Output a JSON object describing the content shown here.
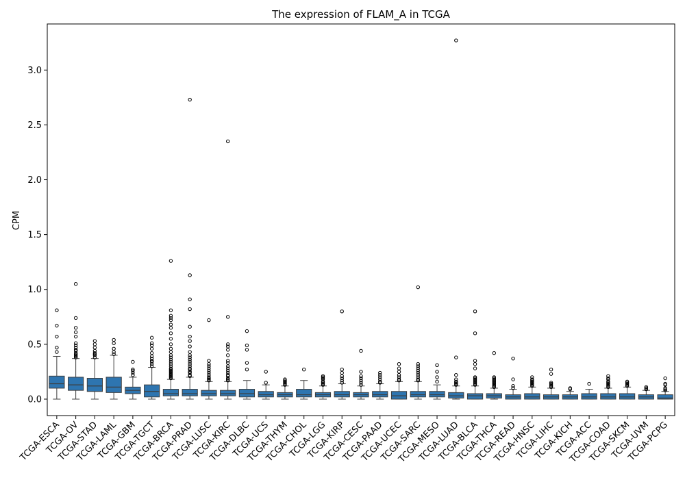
{
  "chart_data": {
    "type": "box",
    "title": "The expression of FLAM_A in TCGA",
    "xlabel": "",
    "ylabel": "CPM",
    "ylim": [
      -0.15,
      3.42
    ],
    "yticks": [
      0.0,
      0.5,
      1.0,
      1.5,
      2.0,
      2.5,
      3.0
    ],
    "ytick_labels": [
      "0.0",
      "0.5",
      "1.0",
      "1.5",
      "2.0",
      "2.5",
      "3.0"
    ],
    "grid": false,
    "box_color": "#2e75b0",
    "categories": [
      "TCGA-ESCA",
      "TCGA-OV",
      "TCGA-STAD",
      "TCGA-LAML",
      "TCGA-GBM",
      "TCGA-TGCT",
      "TCGA-BRCA",
      "TCGA-PRAD",
      "TCGA-LUSC",
      "TCGA-KIRC",
      "TCGA-DLBC",
      "TCGA-UCS",
      "TCGA-THYM",
      "TCGA-CHOL",
      "TCGA-LGG",
      "TCGA-KIRP",
      "TCGA-CESC",
      "TCGA-PAAD",
      "TCGA-UCEC",
      "TCGA-SARC",
      "TCGA-MESO",
      "TCGA-LUAD",
      "TCGA-BLCA",
      "TCGA-THCA",
      "TCGA-READ",
      "TCGA-HNSC",
      "TCGA-LIHC",
      "TCGA-KICH",
      "TCGA-ACC",
      "TCGA-COAD",
      "TCGA-SKCM",
      "TCGA-UVM",
      "TCGA-PCPG"
    ],
    "boxes": [
      {
        "whislo": 0.0,
        "q1": 0.1,
        "med": 0.14,
        "q3": 0.21,
        "whishi": 0.39,
        "fliers": [
          0.43,
          0.47,
          0.57,
          0.67,
          0.81
        ]
      },
      {
        "whislo": 0.0,
        "q1": 0.08,
        "med": 0.13,
        "q3": 0.2,
        "whishi": 0.37,
        "fliers": [
          0.38,
          0.39,
          0.4,
          0.41,
          0.42,
          0.44,
          0.45,
          0.47,
          0.49,
          0.51,
          0.57,
          0.61,
          0.65,
          0.74,
          1.05
        ]
      },
      {
        "whislo": 0.0,
        "q1": 0.07,
        "med": 0.12,
        "q3": 0.19,
        "whishi": 0.37,
        "fliers": [
          0.38,
          0.4,
          0.41,
          0.42,
          0.44,
          0.47,
          0.5,
          0.53
        ]
      },
      {
        "whislo": 0.0,
        "q1": 0.06,
        "med": 0.11,
        "q3": 0.2,
        "whishi": 0.4,
        "fliers": [
          0.41,
          0.43,
          0.46,
          0.51,
          0.54
        ]
      },
      {
        "whislo": 0.0,
        "q1": 0.05,
        "med": 0.08,
        "q3": 0.11,
        "whishi": 0.2,
        "fliers": [
          0.22,
          0.24,
          0.26,
          0.27,
          0.34
        ]
      },
      {
        "whislo": 0.0,
        "q1": 0.02,
        "med": 0.07,
        "q3": 0.13,
        "whishi": 0.29,
        "fliers": [
          0.3,
          0.32,
          0.34,
          0.35,
          0.37,
          0.39,
          0.42,
          0.46,
          0.49,
          0.51,
          0.56
        ]
      },
      {
        "whislo": 0.0,
        "q1": 0.03,
        "med": 0.05,
        "q3": 0.09,
        "whishi": 0.18,
        "fliers": [
          0.19,
          0.2,
          0.21,
          0.22,
          0.23,
          0.24,
          0.25,
          0.26,
          0.27,
          0.28,
          0.3,
          0.32,
          0.34,
          0.36,
          0.38,
          0.4,
          0.43,
          0.46,
          0.5,
          0.55,
          0.6,
          0.65,
          0.68,
          0.72,
          0.74,
          0.76,
          0.81,
          1.26
        ]
      },
      {
        "whislo": 0.0,
        "q1": 0.03,
        "med": 0.05,
        "q3": 0.09,
        "whishi": 0.2,
        "fliers": [
          0.21,
          0.22,
          0.24,
          0.25,
          0.27,
          0.28,
          0.3,
          0.32,
          0.34,
          0.36,
          0.38,
          0.4,
          0.43,
          0.48,
          0.53,
          0.57,
          0.66,
          0.82,
          0.91,
          1.13,
          2.73
        ]
      },
      {
        "whislo": 0.0,
        "q1": 0.03,
        "med": 0.05,
        "q3": 0.08,
        "whishi": 0.16,
        "fliers": [
          0.17,
          0.18,
          0.19,
          0.2,
          0.22,
          0.24,
          0.26,
          0.28,
          0.3,
          0.32,
          0.35,
          0.72
        ]
      },
      {
        "whislo": 0.0,
        "q1": 0.03,
        "med": 0.05,
        "q3": 0.08,
        "whishi": 0.16,
        "fliers": [
          0.17,
          0.18,
          0.19,
          0.21,
          0.22,
          0.24,
          0.26,
          0.28,
          0.3,
          0.33,
          0.35,
          0.4,
          0.45,
          0.48,
          0.5,
          0.75,
          2.35
        ]
      },
      {
        "whislo": 0.0,
        "q1": 0.02,
        "med": 0.05,
        "q3": 0.09,
        "whishi": 0.17,
        "fliers": [
          0.27,
          0.33,
          0.45,
          0.49,
          0.62
        ]
      },
      {
        "whislo": 0.0,
        "q1": 0.02,
        "med": 0.04,
        "q3": 0.07,
        "whishi": 0.13,
        "fliers": [
          0.15,
          0.25
        ]
      },
      {
        "whislo": 0.0,
        "q1": 0.02,
        "med": 0.04,
        "q3": 0.06,
        "whishi": 0.12,
        "fliers": [
          0.13,
          0.14,
          0.15,
          0.16,
          0.17,
          0.18
        ]
      },
      {
        "whislo": 0.0,
        "q1": 0.02,
        "med": 0.04,
        "q3": 0.09,
        "whishi": 0.17,
        "fliers": [
          0.27
        ]
      },
      {
        "whislo": 0.0,
        "q1": 0.02,
        "med": 0.04,
        "q3": 0.06,
        "whishi": 0.12,
        "fliers": [
          0.13,
          0.14,
          0.15,
          0.16,
          0.18,
          0.19,
          0.2,
          0.21
        ]
      },
      {
        "whislo": 0.0,
        "q1": 0.02,
        "med": 0.04,
        "q3": 0.07,
        "whishi": 0.14,
        "fliers": [
          0.15,
          0.17,
          0.19,
          0.21,
          0.24,
          0.27,
          0.8
        ]
      },
      {
        "whislo": 0.0,
        "q1": 0.02,
        "med": 0.04,
        "q3": 0.06,
        "whishi": 0.12,
        "fliers": [
          0.13,
          0.15,
          0.17,
          0.19,
          0.21,
          0.25,
          0.44
        ]
      },
      {
        "whislo": 0.0,
        "q1": 0.02,
        "med": 0.04,
        "q3": 0.07,
        "whishi": 0.14,
        "fliers": [
          0.15,
          0.16,
          0.18,
          0.2,
          0.22,
          0.24
        ]
      },
      {
        "whislo": 0.0,
        "q1": 0.0,
        "med": 0.03,
        "q3": 0.07,
        "whishi": 0.16,
        "fliers": [
          0.17,
          0.18,
          0.2,
          0.22,
          0.25,
          0.28,
          0.32
        ]
      },
      {
        "whislo": 0.0,
        "q1": 0.02,
        "med": 0.04,
        "q3": 0.07,
        "whishi": 0.16,
        "fliers": [
          0.17,
          0.18,
          0.2,
          0.22,
          0.24,
          0.26,
          0.28,
          0.3,
          0.32,
          1.02
        ]
      },
      {
        "whislo": 0.0,
        "q1": 0.02,
        "med": 0.04,
        "q3": 0.07,
        "whishi": 0.13,
        "fliers": [
          0.16,
          0.2,
          0.25,
          0.31
        ]
      },
      {
        "whislo": 0.0,
        "q1": 0.01,
        "med": 0.03,
        "q3": 0.06,
        "whishi": 0.12,
        "fliers": [
          0.13,
          0.14,
          0.15,
          0.16,
          0.18,
          0.22,
          0.38,
          3.27
        ]
      },
      {
        "whislo": 0.0,
        "q1": 0.0,
        "med": 0.03,
        "q3": 0.05,
        "whishi": 0.12,
        "fliers": [
          0.13,
          0.14,
          0.15,
          0.16,
          0.17,
          0.18,
          0.19,
          0.2,
          0.28,
          0.32,
          0.35,
          0.6,
          0.8
        ]
      },
      {
        "whislo": 0.0,
        "q1": 0.01,
        "med": 0.03,
        "q3": 0.05,
        "whishi": 0.1,
        "fliers": [
          0.11,
          0.12,
          0.13,
          0.14,
          0.15,
          0.16,
          0.17,
          0.18,
          0.19,
          0.2,
          0.42
        ]
      },
      {
        "whislo": 0.0,
        "q1": 0.0,
        "med": 0.02,
        "q3": 0.04,
        "whishi": 0.09,
        "fliers": [
          0.1,
          0.12,
          0.18,
          0.37
        ]
      },
      {
        "whislo": 0.0,
        "q1": 0.0,
        "med": 0.02,
        "q3": 0.05,
        "whishi": 0.11,
        "fliers": [
          0.12,
          0.13,
          0.14,
          0.15,
          0.16,
          0.17,
          0.18,
          0.2
        ]
      },
      {
        "whislo": 0.0,
        "q1": 0.0,
        "med": 0.02,
        "q3": 0.04,
        "whishi": 0.1,
        "fliers": [
          0.11,
          0.12,
          0.13,
          0.14,
          0.15,
          0.23,
          0.27
        ]
      },
      {
        "whislo": 0.0,
        "q1": 0.0,
        "med": 0.02,
        "q3": 0.04,
        "whishi": 0.07,
        "fliers": [
          0.09,
          0.1
        ]
      },
      {
        "whislo": 0.0,
        "q1": 0.0,
        "med": 0.02,
        "q3": 0.05,
        "whishi": 0.09,
        "fliers": [
          0.14
        ]
      },
      {
        "whislo": 0.0,
        "q1": 0.0,
        "med": 0.02,
        "q3": 0.05,
        "whishi": 0.1,
        "fliers": [
          0.11,
          0.12,
          0.13,
          0.14,
          0.15,
          0.16,
          0.18,
          0.19,
          0.21
        ]
      },
      {
        "whislo": 0.0,
        "q1": 0.0,
        "med": 0.02,
        "q3": 0.05,
        "whishi": 0.11,
        "fliers": [
          0.12,
          0.13,
          0.14,
          0.15,
          0.16
        ]
      },
      {
        "whislo": 0.0,
        "q1": 0.0,
        "med": 0.02,
        "q3": 0.04,
        "whishi": 0.08,
        "fliers": [
          0.09,
          0.1,
          0.11
        ]
      },
      {
        "whislo": 0.0,
        "q1": 0.0,
        "med": 0.01,
        "q3": 0.04,
        "whishi": 0.07,
        "fliers": [
          0.08,
          0.09,
          0.1,
          0.13,
          0.14,
          0.19
        ]
      }
    ]
  }
}
